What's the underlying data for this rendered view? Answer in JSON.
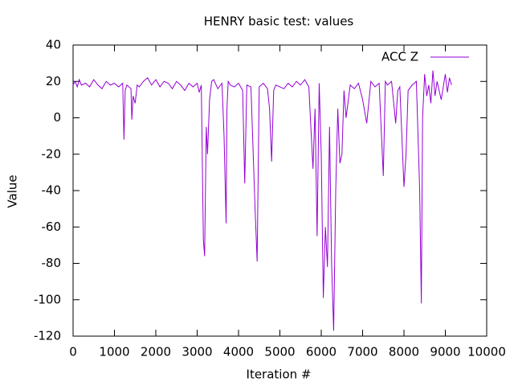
{
  "chart_data": {
    "type": "line",
    "title": "HENRY basic test: values",
    "xlabel": "Iteration #",
    "ylabel": "Value",
    "xlim": [
      0,
      10000
    ],
    "xticks": [
      0,
      1000,
      2000,
      3000,
      4000,
      5000,
      6000,
      7000,
      8000,
      9000,
      10000
    ],
    "ylim": [
      -120,
      40
    ],
    "yticks": [
      -120,
      -100,
      -80,
      -60,
      -40,
      -20,
      0,
      20,
      40
    ],
    "grid": false,
    "legend": "top-right",
    "x": [
      0,
      50,
      100,
      150,
      200,
      300,
      400,
      500,
      600,
      700,
      800,
      900,
      1000,
      1100,
      1200,
      1230,
      1260,
      1300,
      1400,
      1420,
      1450,
      1500,
      1550,
      1600,
      1700,
      1800,
      1900,
      2000,
      2100,
      2200,
      2300,
      2400,
      2500,
      2600,
      2700,
      2800,
      2900,
      3000,
      3050,
      3100,
      3150,
      3180,
      3220,
      3250,
      3300,
      3350,
      3400,
      3500,
      3600,
      3650,
      3700,
      3720,
      3750,
      3800,
      3900,
      4000,
      4100,
      4150,
      4200,
      4300,
      4400,
      4450,
      4500,
      4600,
      4700,
      4750,
      4800,
      4850,
      4900,
      5000,
      5100,
      5200,
      5300,
      5400,
      5500,
      5600,
      5700,
      5800,
      5850,
      5900,
      5950,
      6000,
      6050,
      6100,
      6150,
      6200,
      6250,
      6300,
      6350,
      6400,
      6450,
      6500,
      6550,
      6600,
      6700,
      6800,
      6900,
      7000,
      7100,
      7200,
      7300,
      7400,
      7500,
      7550,
      7600,
      7700,
      7800,
      7850,
      7900,
      8000,
      8050,
      8100,
      8200,
      8300,
      8380,
      8420,
      8450,
      8500,
      8550,
      8600,
      8650,
      8700,
      8750,
      8800,
      8900,
      9000,
      9050,
      9100,
      9150
    ],
    "series": [
      {
        "name": "ACC Z",
        "color": "#9400d3",
        "values": [
          18,
          20,
          17,
          21,
          18,
          19,
          17,
          21,
          18,
          16,
          20,
          18,
          19,
          17,
          19,
          -12,
          15,
          18,
          16,
          -1,
          12,
          8,
          18,
          17,
          20,
          22,
          18,
          21,
          17,
          20,
          19,
          16,
          20,
          18,
          15,
          19,
          17,
          19,
          14,
          18,
          -67,
          -76,
          -5,
          -20,
          10,
          20,
          21,
          16,
          19,
          -10,
          -58,
          5,
          20,
          18,
          17,
          19,
          15,
          -36,
          18,
          17,
          -50,
          -79,
          17,
          19,
          16,
          5,
          -24,
          15,
          18,
          17,
          16,
          19,
          17,
          20,
          18,
          21,
          17,
          -28,
          5,
          -65,
          19,
          -20,
          -99,
          -60,
          -82,
          -5,
          -80,
          -117,
          -40,
          5,
          -25,
          -20,
          15,
          0,
          18,
          16,
          19,
          10,
          -3,
          20,
          17,
          19,
          -32,
          20,
          18,
          20,
          -3,
          15,
          17,
          -38,
          -20,
          15,
          18,
          20,
          -40,
          -102,
          0,
          24,
          12,
          18,
          8,
          26,
          12,
          20,
          10,
          24,
          14,
          22,
          18
        ]
      }
    ]
  }
}
